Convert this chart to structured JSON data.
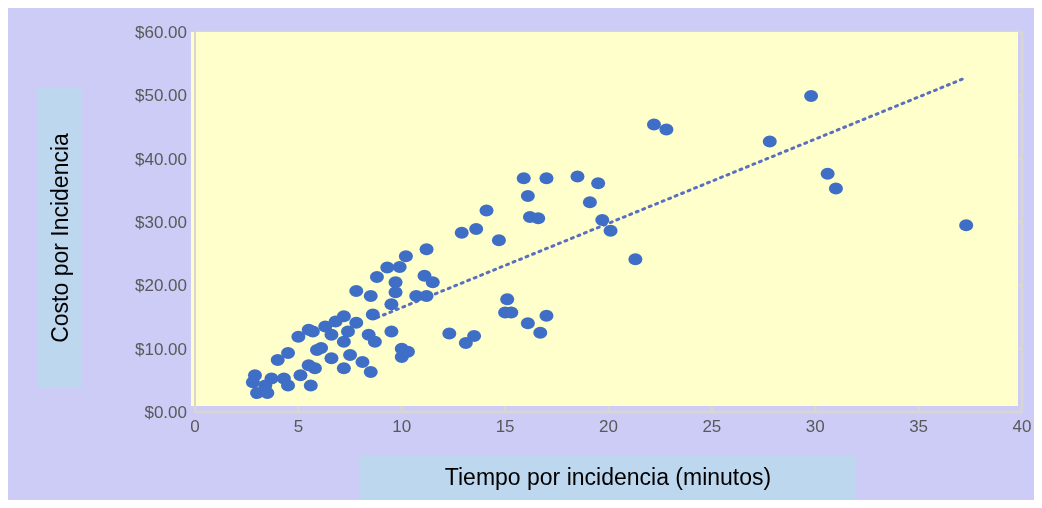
{
  "chart_data": {
    "type": "scatter",
    "xlabel": "Tiempo por incidencia (minutos)",
    "ylabel": "Costo por Incidencia",
    "xlim": [
      0,
      40
    ],
    "xticks": [
      0,
      5,
      10,
      15,
      20,
      25,
      30,
      35,
      40
    ],
    "ylim": [
      0,
      60
    ],
    "yticks": [
      {
        "value": 0,
        "label": "$0.00"
      },
      {
        "value": 10,
        "label": "$10.00"
      },
      {
        "value": 20,
        "label": "$20.00"
      },
      {
        "value": 30,
        "label": "$30.00"
      },
      {
        "value": 40,
        "label": "$40.00"
      },
      {
        "value": 50,
        "label": "$50.00"
      },
      {
        "value": 60,
        "label": "$60.00"
      }
    ],
    "grid": true,
    "marker": "circle",
    "series": [
      {
        "type": "scatter",
        "color": "#3f6ec6",
        "x": [
          29.8,
          22.2,
          22.8,
          27.8,
          15.9,
          17.0,
          18.5,
          19.5,
          30.6,
          31.0,
          16.1,
          19.1,
          14.1,
          16.2,
          16.6,
          19.7,
          20.1,
          12.9,
          13.6,
          14.7,
          37.3,
          21.3,
          11.2,
          10.2,
          11.1,
          11.5,
          10.7,
          11.2,
          15.1,
          15.0,
          15.3,
          17.0,
          16.1,
          16.7,
          12.3,
          13.5,
          13.1,
          10.0,
          10.3,
          10.0,
          9.3,
          9.9,
          8.8,
          9.7,
          7.8,
          8.5,
          9.7,
          9.5,
          8.6,
          7.2,
          6.8,
          7.8,
          6.3,
          5.7,
          5.0,
          7.2,
          8.4,
          9.5,
          8.7,
          6.1,
          6.6,
          4.5,
          4.0,
          7.5,
          8.1,
          7.2,
          8.5,
          5.8,
          5.1,
          5.6,
          4.5,
          3.7,
          2.9,
          2.8,
          3.0,
          3.5,
          3.4,
          4.3,
          5.5,
          6.6,
          7.4,
          5.5,
          5.9
        ],
        "values": [
          49.9,
          45.4,
          44.6,
          42.7,
          36.9,
          36.9,
          37.2,
          36.1,
          37.6,
          35.3,
          34.1,
          33.1,
          31.8,
          30.8,
          30.6,
          30.3,
          28.6,
          28.3,
          28.9,
          27.1,
          29.5,
          24.1,
          25.7,
          24.6,
          21.5,
          20.5,
          18.3,
          18.3,
          17.8,
          15.7,
          15.7,
          15.2,
          14.0,
          12.5,
          12.4,
          12.0,
          10.9,
          10.0,
          9.5,
          8.7,
          22.8,
          22.9,
          21.3,
          20.5,
          19.1,
          18.3,
          18.9,
          17.0,
          15.4,
          15.1,
          14.3,
          14.1,
          13.5,
          12.7,
          11.9,
          11.1,
          12.2,
          12.7,
          11.1,
          10.1,
          8.5,
          9.3,
          8.2,
          9.0,
          7.9,
          6.9,
          6.3,
          6.9,
          5.8,
          4.2,
          4.2,
          5.3,
          5.8,
          4.7,
          3.0,
          3.0,
          4.2,
          5.3,
          7.4,
          12.2,
          12.7,
          13.0,
          9.8
        ]
      },
      {
        "type": "line",
        "color": "#5a6fbf",
        "line_style": "dotted",
        "marker": "none",
        "x": [
          8.8,
          37.3
        ],
        "values": [
          14.9,
          52.8
        ]
      }
    ]
  }
}
